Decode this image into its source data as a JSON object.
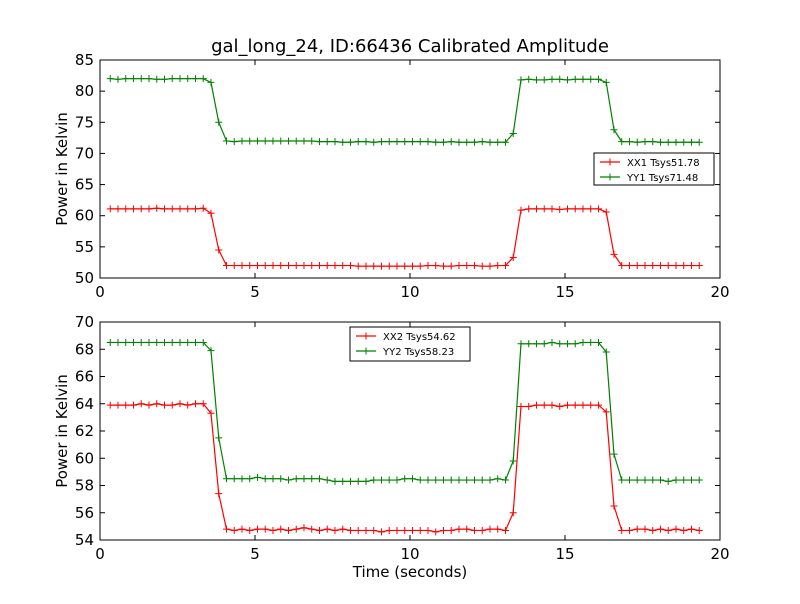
{
  "title": "gal_long_24, ID:66436 Calibrated Amplitude",
  "colors": {
    "red": "#ff0000",
    "green": "#008000",
    "axis": "#000000"
  },
  "chart_data": [
    {
      "type": "line",
      "ylabel": "Power in Kelvin",
      "xlabel": "",
      "xlim": [
        0,
        20
      ],
      "ylim": [
        50,
        85
      ],
      "xticks": [
        "0",
        "5",
        "10",
        "15",
        "20"
      ],
      "yticks": [
        "50",
        "55",
        "60",
        "65",
        "70",
        "75",
        "80",
        "85"
      ],
      "grid": false,
      "legend_position": "right",
      "x": [
        0.33,
        0.58,
        0.83,
        1.08,
        1.33,
        1.58,
        1.83,
        2.08,
        2.33,
        2.58,
        2.83,
        3.08,
        3.33,
        3.58,
        3.83,
        4.08,
        4.33,
        4.58,
        4.83,
        5.08,
        5.33,
        5.58,
        5.83,
        6.08,
        6.33,
        6.58,
        6.83,
        7.08,
        7.33,
        7.58,
        7.83,
        8.08,
        8.33,
        8.58,
        8.83,
        9.08,
        9.33,
        9.58,
        9.83,
        10.08,
        10.33,
        10.58,
        10.83,
        11.08,
        11.33,
        11.58,
        11.83,
        12.08,
        12.33,
        12.58,
        12.83,
        13.08,
        13.33,
        13.58,
        13.83,
        14.08,
        14.33,
        14.58,
        14.83,
        15.08,
        15.33,
        15.58,
        15.83,
        16.08,
        16.33,
        16.58,
        16.83,
        17.08,
        17.33,
        17.58,
        17.83,
        18.08,
        18.33,
        18.58,
        18.83,
        19.08,
        19.33
      ],
      "series": [
        {
          "name": "XX1 Tsys51.78",
          "color": "#ff0000",
          "values": [
            61.1,
            61.1,
            61.1,
            61.1,
            61.1,
            61.1,
            61.2,
            61.1,
            61.1,
            61.1,
            61.1,
            61.1,
            61.2,
            60.4,
            54.5,
            52.0,
            52.0,
            52.0,
            52.0,
            52.0,
            52.0,
            52.0,
            52.0,
            52.0,
            52.0,
            52.0,
            52.0,
            52.0,
            52.0,
            52.0,
            52.0,
            52.0,
            51.9,
            51.9,
            51.9,
            51.9,
            51.9,
            51.9,
            51.9,
            51.9,
            51.9,
            52.0,
            52.0,
            51.9,
            51.9,
            52.0,
            52.0,
            52.0,
            51.9,
            51.9,
            52.0,
            52.0,
            53.3,
            60.9,
            61.1,
            61.1,
            61.1,
            61.1,
            61.0,
            61.1,
            61.1,
            61.1,
            61.1,
            61.1,
            60.6,
            53.8,
            52.0,
            52.0,
            52.0,
            52.0,
            52.0,
            52.0,
            52.0,
            52.0,
            52.0,
            52.0,
            52.0
          ]
        },
        {
          "name": "YY1 Tsys71.48",
          "color": "#008000",
          "values": [
            82.0,
            81.9,
            82.0,
            82.0,
            82.0,
            82.0,
            81.9,
            81.9,
            82.0,
            82.0,
            82.0,
            82.0,
            82.0,
            81.4,
            75.0,
            72.0,
            71.9,
            72.0,
            72.0,
            72.0,
            72.0,
            72.0,
            72.0,
            72.0,
            72.0,
            72.0,
            72.0,
            71.9,
            71.9,
            71.9,
            71.8,
            71.8,
            71.9,
            71.9,
            71.8,
            71.9,
            71.9,
            71.9,
            71.9,
            71.9,
            71.9,
            71.9,
            71.8,
            71.8,
            71.9,
            71.8,
            71.8,
            71.8,
            71.9,
            71.8,
            71.8,
            71.8,
            73.2,
            81.8,
            81.9,
            81.8,
            81.8,
            81.9,
            81.9,
            81.8,
            81.9,
            81.9,
            81.9,
            81.9,
            81.4,
            73.8,
            71.9,
            71.9,
            71.8,
            71.9,
            71.9,
            71.8,
            71.8,
            71.8,
            71.8,
            71.8,
            71.8
          ]
        }
      ]
    },
    {
      "type": "line",
      "ylabel": "Power in Kelvin",
      "xlabel": "Time (seconds)",
      "xlim": [
        0,
        20
      ],
      "ylim": [
        54,
        70
      ],
      "xticks": [
        "0",
        "5",
        "10",
        "15",
        "20"
      ],
      "yticks": [
        "54",
        "56",
        "58",
        "60",
        "62",
        "64",
        "66",
        "68",
        "70"
      ],
      "grid": false,
      "legend_position": "upper center",
      "x": [
        0.33,
        0.58,
        0.83,
        1.08,
        1.33,
        1.58,
        1.83,
        2.08,
        2.33,
        2.58,
        2.83,
        3.08,
        3.33,
        3.58,
        3.83,
        4.08,
        4.33,
        4.58,
        4.83,
        5.08,
        5.33,
        5.58,
        5.83,
        6.08,
        6.33,
        6.58,
        6.83,
        7.08,
        7.33,
        7.58,
        7.83,
        8.08,
        8.33,
        8.58,
        8.83,
        9.08,
        9.33,
        9.58,
        9.83,
        10.08,
        10.33,
        10.58,
        10.83,
        11.08,
        11.33,
        11.58,
        11.83,
        12.08,
        12.33,
        12.58,
        12.83,
        13.08,
        13.33,
        13.58,
        13.83,
        14.08,
        14.33,
        14.58,
        14.83,
        15.08,
        15.33,
        15.58,
        15.83,
        16.08,
        16.33,
        16.58,
        16.83,
        17.08,
        17.33,
        17.58,
        17.83,
        18.08,
        18.33,
        18.58,
        18.83,
        19.08,
        19.33
      ],
      "series": [
        {
          "name": "XX2 Tsys54.62",
          "color": "#ff0000",
          "values": [
            63.9,
            63.9,
            63.9,
            63.9,
            64.0,
            63.9,
            64.0,
            63.9,
            63.9,
            64.0,
            63.9,
            64.0,
            64.0,
            63.3,
            57.4,
            54.8,
            54.7,
            54.8,
            54.7,
            54.8,
            54.8,
            54.7,
            54.8,
            54.7,
            54.8,
            54.9,
            54.8,
            54.7,
            54.8,
            54.7,
            54.8,
            54.7,
            54.7,
            54.7,
            54.7,
            54.6,
            54.7,
            54.7,
            54.7,
            54.7,
            54.7,
            54.7,
            54.6,
            54.7,
            54.7,
            54.8,
            54.8,
            54.7,
            54.7,
            54.8,
            54.8,
            54.7,
            56.0,
            63.8,
            63.8,
            63.9,
            63.9,
            63.9,
            63.8,
            63.9,
            63.9,
            63.9,
            63.9,
            63.9,
            63.4,
            56.5,
            54.7,
            54.7,
            54.8,
            54.8,
            54.7,
            54.8,
            54.7,
            54.8,
            54.7,
            54.8,
            54.7
          ]
        },
        {
          "name": "YY2 Tsys58.23",
          "color": "#008000",
          "values": [
            68.5,
            68.5,
            68.5,
            68.5,
            68.5,
            68.5,
            68.5,
            68.5,
            68.5,
            68.5,
            68.5,
            68.5,
            68.5,
            67.9,
            61.5,
            58.5,
            58.5,
            58.5,
            58.5,
            58.6,
            58.5,
            58.5,
            58.5,
            58.4,
            58.5,
            58.5,
            58.5,
            58.5,
            58.4,
            58.3,
            58.3,
            58.3,
            58.3,
            58.3,
            58.4,
            58.4,
            58.4,
            58.4,
            58.5,
            58.5,
            58.4,
            58.4,
            58.4,
            58.4,
            58.4,
            58.4,
            58.4,
            58.4,
            58.4,
            58.4,
            58.5,
            58.4,
            59.8,
            68.4,
            68.4,
            68.4,
            68.4,
            68.5,
            68.4,
            68.4,
            68.4,
            68.5,
            68.5,
            68.5,
            67.8,
            60.3,
            58.4,
            58.4,
            58.4,
            58.4,
            58.4,
            58.4,
            58.3,
            58.4,
            58.4,
            58.4,
            58.4
          ]
        }
      ]
    }
  ]
}
